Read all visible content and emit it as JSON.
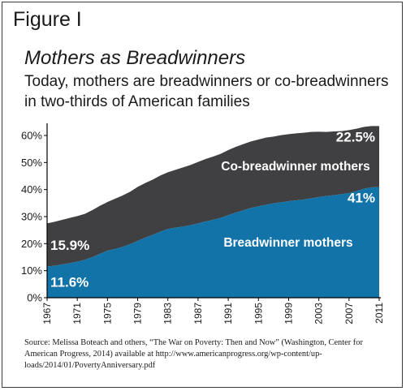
{
  "figure_label": "Figure I",
  "title": "Mothers as Breadwinners",
  "subtitle": "Today, mothers are breadwinners or co-breadwinners in two-thirds of American families",
  "source": "Source: Melissa Boteach and others, “The War on Poverty: Then and Now” (Washington, Center for American Progress, 2014) available at http://www.americanprogress.org/wp-content/up-loads/2014/01/PovertyAnniversary.pdf",
  "chart_data": {
    "type": "area",
    "stacked": true,
    "x": [
      1967,
      1968,
      1969,
      1970,
      1971,
      1972,
      1973,
      1974,
      1975,
      1976,
      1977,
      1978,
      1979,
      1980,
      1981,
      1982,
      1983,
      1984,
      1985,
      1986,
      1987,
      1988,
      1989,
      1990,
      1991,
      1992,
      1993,
      1994,
      1995,
      1996,
      1997,
      1998,
      1999,
      2000,
      2001,
      2002,
      2003,
      2004,
      2005,
      2006,
      2007,
      2008,
      2009,
      2010,
      2011
    ],
    "series": [
      {
        "name": "Breadwinner mothers",
        "color": "#1173a8",
        "values": [
          11.6,
          11.8,
          12.3,
          12.8,
          13.3,
          14.0,
          15.0,
          16.2,
          17.4,
          18.0,
          18.8,
          19.8,
          21.0,
          22.2,
          23.2,
          24.4,
          25.4,
          25.9,
          26.3,
          26.8,
          27.5,
          28.2,
          28.8,
          29.5,
          30.5,
          31.5,
          32.3,
          33.2,
          33.8,
          34.4,
          34.9,
          35.3,
          35.7,
          36.0,
          36.3,
          36.8,
          37.2,
          37.6,
          37.9,
          38.3,
          38.7,
          39.4,
          40.3,
          40.8,
          41.0
        ]
      },
      {
        "name": "Co-breadwinner mothers",
        "color": "#404042",
        "values": [
          15.9,
          16.3,
          16.5,
          16.7,
          16.9,
          17.0,
          17.4,
          17.8,
          18.0,
          18.6,
          19.0,
          19.4,
          20.0,
          20.2,
          20.5,
          20.8,
          21.0,
          21.4,
          21.9,
          22.3,
          22.7,
          23.1,
          23.4,
          23.7,
          24.1,
          24.3,
          24.5,
          24.6,
          24.7,
          24.8,
          24.7,
          24.8,
          24.8,
          24.8,
          24.7,
          24.5,
          24.2,
          23.7,
          23.6,
          23.3,
          23.3,
          23.1,
          22.9,
          22.7,
          22.5
        ]
      }
    ],
    "xticks": [
      "1967",
      "1971",
      "1975",
      "1979",
      "1983",
      "1987",
      "1991",
      "1995",
      "1999",
      "2003",
      "2007",
      "2011"
    ],
    "yticks": [
      "0%",
      "10%",
      "20%",
      "30%",
      "40%",
      "50%",
      "60%"
    ],
    "ylim": [
      0,
      63
    ],
    "annotations": [
      {
        "text": "15.9%",
        "series": "Co-breadwinner mothers",
        "side": "start"
      },
      {
        "text": "11.6%",
        "series": "Breadwinner mothers",
        "side": "start"
      },
      {
        "text": "22.5%",
        "series": "Co-breadwinner mothers",
        "side": "end"
      },
      {
        "text": "41%",
        "series": "Breadwinner mothers",
        "side": "end"
      }
    ],
    "grid": false,
    "legend": "inline"
  }
}
